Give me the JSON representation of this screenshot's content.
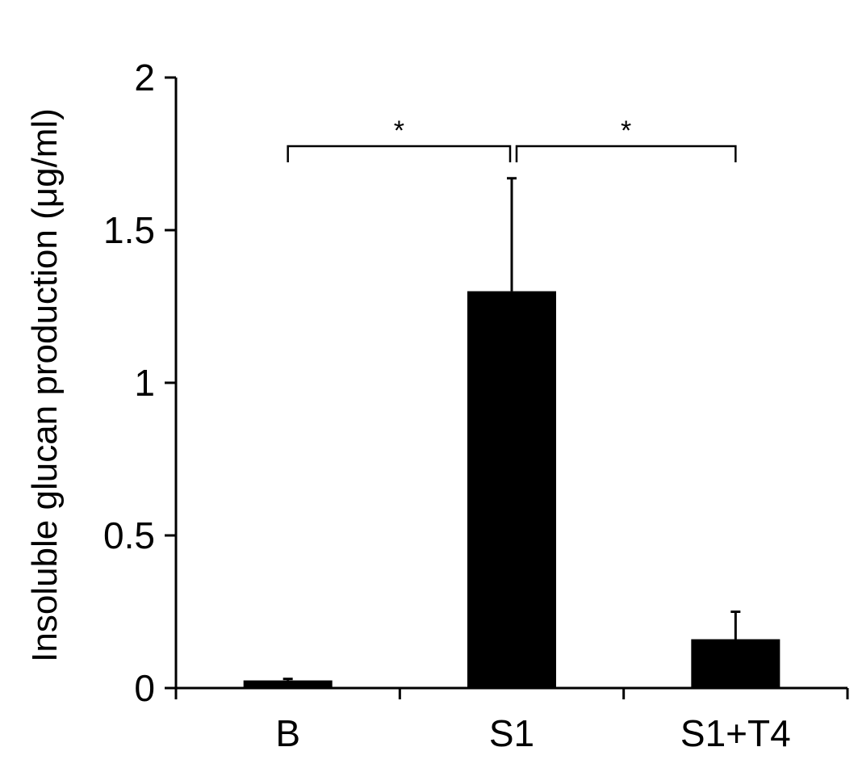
{
  "chart_data": {
    "type": "bar",
    "title": "",
    "xlabel": "",
    "ylabel": "Insoluble glucan production (μg/ml)",
    "categories": [
      "B",
      "S1",
      "S1+T4"
    ],
    "values": [
      0.025,
      1.3,
      0.16
    ],
    "error_upper": [
      0.005,
      0.37,
      0.09
    ],
    "ylim": [
      0,
      2
    ],
    "yticks": [
      0,
      0.5,
      1,
      1.5,
      2
    ],
    "ytick_labels": [
      "0",
      "0.5",
      "1",
      "1.5",
      "2"
    ],
    "grid": false,
    "legend": "none",
    "bar_color": "#000000",
    "significance": [
      {
        "from": "B",
        "to": "S1",
        "label": "*"
      },
      {
        "from": "S1",
        "to": "S1+T4",
        "label": "*"
      }
    ]
  }
}
